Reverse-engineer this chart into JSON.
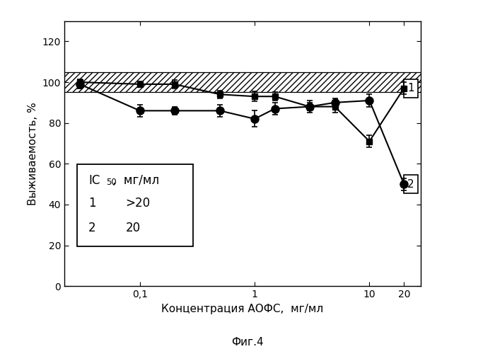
{
  "xlabel": "Концентрация АОФС,  мг/мл",
  "ylabel": "Выживаемость, %",
  "fig_label": "Фиг.4",
  "x_ticks_labels": [
    "0,1",
    "1",
    "10",
    "20"
  ],
  "x_ticks_pos": [
    0.1,
    1.0,
    10.0,
    20.0
  ],
  "ylim": [
    0,
    130
  ],
  "yticks": [
    0,
    20,
    40,
    60,
    80,
    100,
    120
  ],
  "shade_ymin": 95,
  "shade_ymax": 105,
  "series1_x": [
    0.03,
    0.1,
    0.2,
    0.5,
    1.0,
    1.5,
    3.0,
    5.0,
    10.0,
    20.0
  ],
  "series1_y": [
    100,
    99,
    99,
    94,
    93,
    93,
    88,
    88,
    71,
    97
  ],
  "series1_yerr": [
    1.5,
    1.5,
    2,
    2,
    2.5,
    2,
    2,
    3,
    3,
    3
  ],
  "series2_x": [
    0.03,
    0.1,
    0.2,
    0.5,
    1.0,
    1.5,
    3.0,
    5.0,
    10.0,
    20.0
  ],
  "series2_y": [
    99,
    86,
    86,
    86,
    82,
    87,
    88,
    90,
    91,
    50
  ],
  "series2_yerr": [
    2,
    3,
    2,
    3,
    4,
    3,
    3,
    2,
    3,
    3
  ],
  "background_color": "#ffffff"
}
